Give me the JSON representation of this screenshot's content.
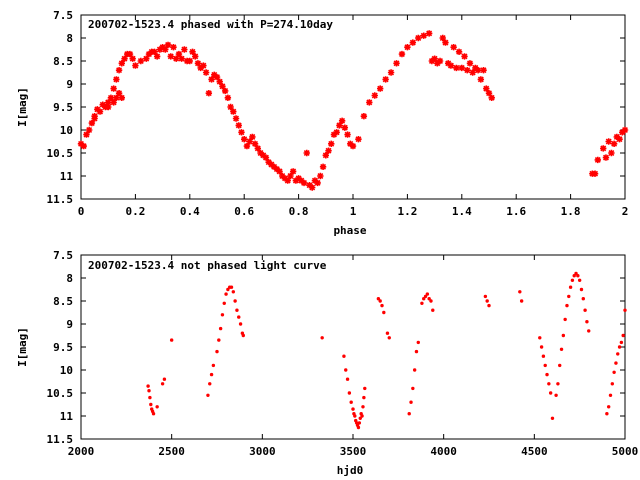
{
  "chart_data": [
    {
      "type": "scatter",
      "title": "200702-1523.4 phased with P=274.10day",
      "xlabel": "phase",
      "ylabel": "I[mag]",
      "xlim": [
        0,
        2
      ],
      "ylim": [
        11.5,
        7.5
      ],
      "y_inverted": true,
      "grid": false,
      "marker": "star",
      "color": "#ff0000",
      "x_ticks": [
        "0",
        "0.2",
        "0.4",
        "0.6",
        "0.8",
        "1",
        "1.2",
        "1.4",
        "1.6",
        "1.8",
        "2"
      ],
      "y_ticks": [
        "7.5",
        "8",
        "8.5",
        "9",
        "9.5",
        "10",
        "10.5",
        "11",
        "11.5"
      ],
      "points": [
        [
          0.0,
          10.3
        ],
        [
          0.01,
          10.35
        ],
        [
          0.02,
          10.1
        ],
        [
          0.03,
          10.0
        ],
        [
          0.04,
          9.85
        ],
        [
          0.05,
          9.7
        ],
        [
          0.06,
          9.55
        ],
        [
          0.07,
          9.6
        ],
        [
          0.08,
          9.45
        ],
        [
          0.09,
          9.5
        ],
        [
          0.1,
          9.4
        ],
        [
          0.11,
          9.3
        ],
        [
          0.12,
          9.1
        ],
        [
          0.13,
          8.9
        ],
        [
          0.14,
          8.7
        ],
        [
          0.15,
          8.55
        ],
        [
          0.16,
          8.45
        ],
        [
          0.17,
          8.35
        ],
        [
          0.18,
          8.35
        ],
        [
          0.19,
          8.45
        ],
        [
          0.12,
          9.4
        ],
        [
          0.13,
          9.3
        ],
        [
          0.14,
          9.2
        ],
        [
          0.15,
          9.3
        ],
        [
          0.1,
          9.5
        ],
        [
          0.05,
          9.75
        ],
        [
          0.2,
          8.6
        ],
        [
          0.22,
          8.5
        ],
        [
          0.24,
          8.45
        ],
        [
          0.25,
          8.35
        ],
        [
          0.26,
          8.3
        ],
        [
          0.27,
          8.3
        ],
        [
          0.28,
          8.4
        ],
        [
          0.29,
          8.25
        ],
        [
          0.3,
          8.2
        ],
        [
          0.31,
          8.25
        ],
        [
          0.32,
          8.15
        ],
        [
          0.33,
          8.4
        ],
        [
          0.34,
          8.2
        ],
        [
          0.35,
          8.45
        ],
        [
          0.36,
          8.35
        ],
        [
          0.37,
          8.45
        ],
        [
          0.38,
          8.25
        ],
        [
          0.39,
          8.5
        ],
        [
          0.4,
          8.5
        ],
        [
          0.41,
          8.3
        ],
        [
          0.42,
          8.4
        ],
        [
          0.43,
          8.55
        ],
        [
          0.44,
          8.65
        ],
        [
          0.45,
          8.6
        ],
        [
          0.46,
          8.75
        ],
        [
          0.47,
          9.2
        ],
        [
          0.48,
          8.9
        ],
        [
          0.49,
          8.8
        ],
        [
          0.5,
          8.85
        ],
        [
          0.51,
          8.95
        ],
        [
          0.52,
          9.05
        ],
        [
          0.53,
          9.15
        ],
        [
          0.54,
          9.3
        ],
        [
          0.55,
          9.5
        ],
        [
          0.56,
          9.6
        ],
        [
          0.57,
          9.75
        ],
        [
          0.58,
          9.9
        ],
        [
          0.59,
          10.05
        ],
        [
          0.6,
          10.2
        ],
        [
          0.61,
          10.35
        ],
        [
          0.62,
          10.25
        ],
        [
          0.63,
          10.15
        ],
        [
          0.64,
          10.3
        ],
        [
          0.65,
          10.4
        ],
        [
          0.66,
          10.5
        ],
        [
          0.67,
          10.55
        ],
        [
          0.68,
          10.6
        ],
        [
          0.69,
          10.7
        ],
        [
          0.7,
          10.75
        ],
        [
          0.71,
          10.8
        ],
        [
          0.72,
          10.85
        ],
        [
          0.73,
          10.9
        ],
        [
          0.74,
          11.0
        ],
        [
          0.75,
          11.05
        ],
        [
          0.76,
          11.1
        ],
        [
          0.77,
          11.0
        ],
        [
          0.78,
          10.9
        ],
        [
          0.79,
          11.1
        ],
        [
          0.8,
          11.05
        ],
        [
          0.81,
          11.1
        ],
        [
          0.82,
          11.15
        ],
        [
          0.83,
          10.5
        ],
        [
          0.84,
          11.2
        ],
        [
          0.85,
          11.25
        ],
        [
          0.86,
          11.1
        ],
        [
          0.87,
          11.15
        ],
        [
          0.88,
          11.0
        ],
        [
          0.89,
          10.8
        ],
        [
          0.9,
          10.55
        ],
        [
          0.91,
          10.45
        ],
        [
          0.92,
          10.3
        ],
        [
          0.93,
          10.1
        ],
        [
          0.94,
          10.05
        ],
        [
          0.95,
          9.9
        ],
        [
          0.96,
          9.8
        ],
        [
          0.97,
          9.95
        ],
        [
          0.98,
          10.1
        ],
        [
          0.99,
          10.3
        ],
        [
          1.0,
          10.35
        ],
        [
          1.02,
          10.2
        ],
        [
          1.04,
          9.7
        ],
        [
          1.06,
          9.4
        ],
        [
          1.08,
          9.25
        ],
        [
          1.1,
          9.1
        ],
        [
          1.12,
          8.9
        ],
        [
          1.14,
          8.75
        ],
        [
          1.16,
          8.55
        ],
        [
          1.18,
          8.35
        ],
        [
          1.2,
          8.2
        ],
        [
          1.22,
          8.1
        ],
        [
          1.24,
          8.0
        ],
        [
          1.26,
          7.95
        ],
        [
          1.28,
          7.9
        ],
        [
          1.29,
          8.5
        ],
        [
          1.3,
          8.45
        ],
        [
          1.31,
          8.55
        ],
        [
          1.32,
          8.5
        ],
        [
          1.33,
          8.0
        ],
        [
          1.34,
          8.1
        ],
        [
          1.35,
          8.55
        ],
        [
          1.36,
          8.6
        ],
        [
          1.37,
          8.2
        ],
        [
          1.38,
          8.65
        ],
        [
          1.39,
          8.3
        ],
        [
          1.4,
          8.65
        ],
        [
          1.41,
          8.4
        ],
        [
          1.42,
          8.7
        ],
        [
          1.43,
          8.55
        ],
        [
          1.44,
          8.75
        ],
        [
          1.45,
          8.65
        ],
        [
          1.46,
          8.7
        ],
        [
          1.47,
          8.9
        ],
        [
          1.48,
          8.7
        ],
        [
          1.49,
          9.1
        ],
        [
          1.5,
          9.2
        ],
        [
          1.51,
          9.3
        ],
        [
          1.88,
          10.95
        ],
        [
          1.89,
          10.95
        ],
        [
          1.9,
          10.65
        ],
        [
          1.92,
          10.4
        ],
        [
          1.93,
          10.6
        ],
        [
          1.94,
          10.25
        ],
        [
          1.95,
          10.5
        ],
        [
          1.96,
          10.3
        ],
        [
          1.97,
          10.15
        ],
        [
          1.98,
          10.2
        ],
        [
          1.99,
          10.05
        ],
        [
          2.0,
          10.0
        ]
      ]
    },
    {
      "type": "scatter",
      "title": "200702-1523.4 not phased light curve",
      "xlabel": "hjd0",
      "ylabel": "I[mag]",
      "xlim": [
        2000,
        5000
      ],
      "ylim": [
        11.5,
        7.5
      ],
      "y_inverted": true,
      "grid": false,
      "marker": "dot",
      "color": "#ff0000",
      "x_ticks": [
        "2000",
        "2500",
        "3000",
        "3500",
        "4000",
        "4500",
        "5000"
      ],
      "y_ticks": [
        "7.5",
        "8",
        "8.5",
        "9",
        "9.5",
        "10",
        "10.5",
        "11",
        "11.5"
      ],
      "points": [
        [
          2370,
          10.35
        ],
        [
          2375,
          10.45
        ],
        [
          2380,
          10.6
        ],
        [
          2385,
          10.75
        ],
        [
          2390,
          10.85
        ],
        [
          2395,
          10.9
        ],
        [
          2400,
          10.95
        ],
        [
          2420,
          10.8
        ],
        [
          2450,
          10.3
        ],
        [
          2460,
          10.2
        ],
        [
          2500,
          9.35
        ],
        [
          2700,
          10.55
        ],
        [
          2710,
          10.3
        ],
        [
          2720,
          10.1
        ],
        [
          2730,
          9.9
        ],
        [
          2750,
          9.6
        ],
        [
          2760,
          9.35
        ],
        [
          2770,
          9.1
        ],
        [
          2780,
          8.8
        ],
        [
          2790,
          8.55
        ],
        [
          2800,
          8.35
        ],
        [
          2810,
          8.25
        ],
        [
          2820,
          8.2
        ],
        [
          2830,
          8.2
        ],
        [
          2840,
          8.3
        ],
        [
          2850,
          8.5
        ],
        [
          2860,
          8.7
        ],
        [
          2870,
          8.85
        ],
        [
          2880,
          9.0
        ],
        [
          2890,
          9.2
        ],
        [
          2895,
          9.25
        ],
        [
          3330,
          9.3
        ],
        [
          3450,
          9.7
        ],
        [
          3460,
          10.0
        ],
        [
          3470,
          10.2
        ],
        [
          3480,
          10.5
        ],
        [
          3490,
          10.7
        ],
        [
          3500,
          10.85
        ],
        [
          3505,
          10.95
        ],
        [
          3510,
          11.0
        ],
        [
          3515,
          11.1
        ],
        [
          3520,
          11.15
        ],
        [
          3525,
          11.2
        ],
        [
          3530,
          11.25
        ],
        [
          3535,
          11.15
        ],
        [
          3540,
          11.05
        ],
        [
          3545,
          10.95
        ],
        [
          3550,
          11.0
        ],
        [
          3555,
          10.8
        ],
        [
          3560,
          10.6
        ],
        [
          3565,
          10.4
        ],
        [
          3640,
          8.45
        ],
        [
          3650,
          8.5
        ],
        [
          3660,
          8.6
        ],
        [
          3670,
          8.75
        ],
        [
          3690,
          9.2
        ],
        [
          3700,
          9.3
        ],
        [
          3810,
          10.95
        ],
        [
          3820,
          10.7
        ],
        [
          3830,
          10.4
        ],
        [
          3840,
          10.0
        ],
        [
          3850,
          9.6
        ],
        [
          3860,
          9.4
        ],
        [
          3880,
          8.55
        ],
        [
          3890,
          8.45
        ],
        [
          3900,
          8.4
        ],
        [
          3910,
          8.35
        ],
        [
          3920,
          8.45
        ],
        [
          3930,
          8.5
        ],
        [
          3940,
          8.7
        ],
        [
          4230,
          8.4
        ],
        [
          4240,
          8.5
        ],
        [
          4250,
          8.6
        ],
        [
          4420,
          8.3
        ],
        [
          4430,
          8.5
        ],
        [
          4530,
          9.3
        ],
        [
          4540,
          9.5
        ],
        [
          4550,
          9.7
        ],
        [
          4560,
          9.9
        ],
        [
          4570,
          10.1
        ],
        [
          4580,
          10.3
        ],
        [
          4590,
          10.5
        ],
        [
          4600,
          11.05
        ],
        [
          4620,
          10.55
        ],
        [
          4630,
          10.3
        ],
        [
          4640,
          9.9
        ],
        [
          4650,
          9.55
        ],
        [
          4660,
          9.25
        ],
        [
          4670,
          8.9
        ],
        [
          4680,
          8.6
        ],
        [
          4690,
          8.4
        ],
        [
          4700,
          8.2
        ],
        [
          4710,
          8.05
        ],
        [
          4720,
          7.95
        ],
        [
          4730,
          7.9
        ],
        [
          4740,
          7.95
        ],
        [
          4750,
          8.05
        ],
        [
          4760,
          8.25
        ],
        [
          4770,
          8.45
        ],
        [
          4780,
          8.7
        ],
        [
          4790,
          8.95
        ],
        [
          4800,
          9.15
        ],
        [
          4900,
          10.95
        ],
        [
          4910,
          10.8
        ],
        [
          4920,
          10.55
        ],
        [
          4930,
          10.3
        ],
        [
          4940,
          10.05
        ],
        [
          4950,
          9.85
        ],
        [
          4960,
          9.65
        ],
        [
          4970,
          9.5
        ],
        [
          4980,
          9.4
        ],
        [
          4990,
          9.25
        ],
        [
          5000,
          8.7
        ]
      ]
    }
  ]
}
